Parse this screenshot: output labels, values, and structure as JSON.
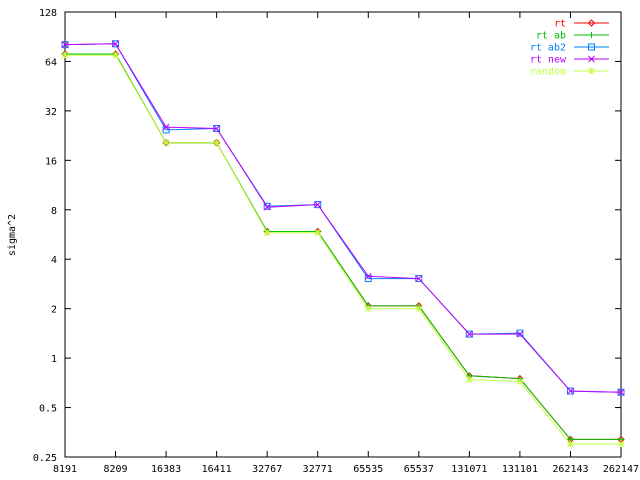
{
  "chart_data": {
    "type": "line",
    "title": "",
    "xlabel": "",
    "ylabel": "sigma^2",
    "y_scale": "log2",
    "ylim": [
      0.25,
      128
    ],
    "yticks": [
      {
        "value": 0.25,
        "label": "0.25"
      },
      {
        "value": 0.5,
        "label": "0.5"
      },
      {
        "value": 1,
        "label": "1"
      },
      {
        "value": 2,
        "label": "2"
      },
      {
        "value": 4,
        "label": "4"
      },
      {
        "value": 8,
        "label": "8"
      },
      {
        "value": 16,
        "label": "16"
      },
      {
        "value": 32,
        "label": "32"
      },
      {
        "value": 64,
        "label": "64"
      },
      {
        "value": 128,
        "label": "128"
      }
    ],
    "categories": [
      "8191",
      "8209",
      "16383",
      "16411",
      "32767",
      "32771",
      "65535",
      "65537",
      "131071",
      "131101",
      "262143",
      "262147"
    ],
    "grid": false,
    "legend_position": "top-right",
    "series": [
      {
        "name": "rt",
        "color": "#ff0000",
        "marker": "diamond",
        "values": [
          71.0,
          71.0,
          20.5,
          20.5,
          5.9,
          5.9,
          2.08,
          2.08,
          0.78,
          0.75,
          0.32,
          0.32
        ]
      },
      {
        "name": "rt ab",
        "color": "#00c000",
        "marker": "plus",
        "values": [
          71.0,
          71.0,
          20.5,
          20.5,
          5.9,
          5.9,
          2.08,
          2.08,
          0.78,
          0.75,
          0.32,
          0.32
        ]
      },
      {
        "name": "rt ab2",
        "color": "#0080ff",
        "marker": "square",
        "values": [
          81.0,
          82.0,
          24.5,
          25.0,
          8.4,
          8.6,
          3.05,
          3.05,
          1.4,
          1.42,
          0.63,
          0.62
        ]
      },
      {
        "name": "rt new",
        "color": "#c000ff",
        "marker": "cross",
        "values": [
          81.0,
          82.0,
          25.5,
          25.0,
          8.3,
          8.6,
          3.15,
          3.05,
          1.4,
          1.4,
          0.63,
          0.62
        ]
      },
      {
        "name": "random",
        "color": "#c0ff40",
        "marker": "star",
        "values": [
          70.0,
          70.0,
          20.5,
          20.5,
          5.8,
          5.8,
          2.0,
          2.0,
          0.74,
          0.72,
          0.3,
          0.3
        ]
      }
    ]
  }
}
